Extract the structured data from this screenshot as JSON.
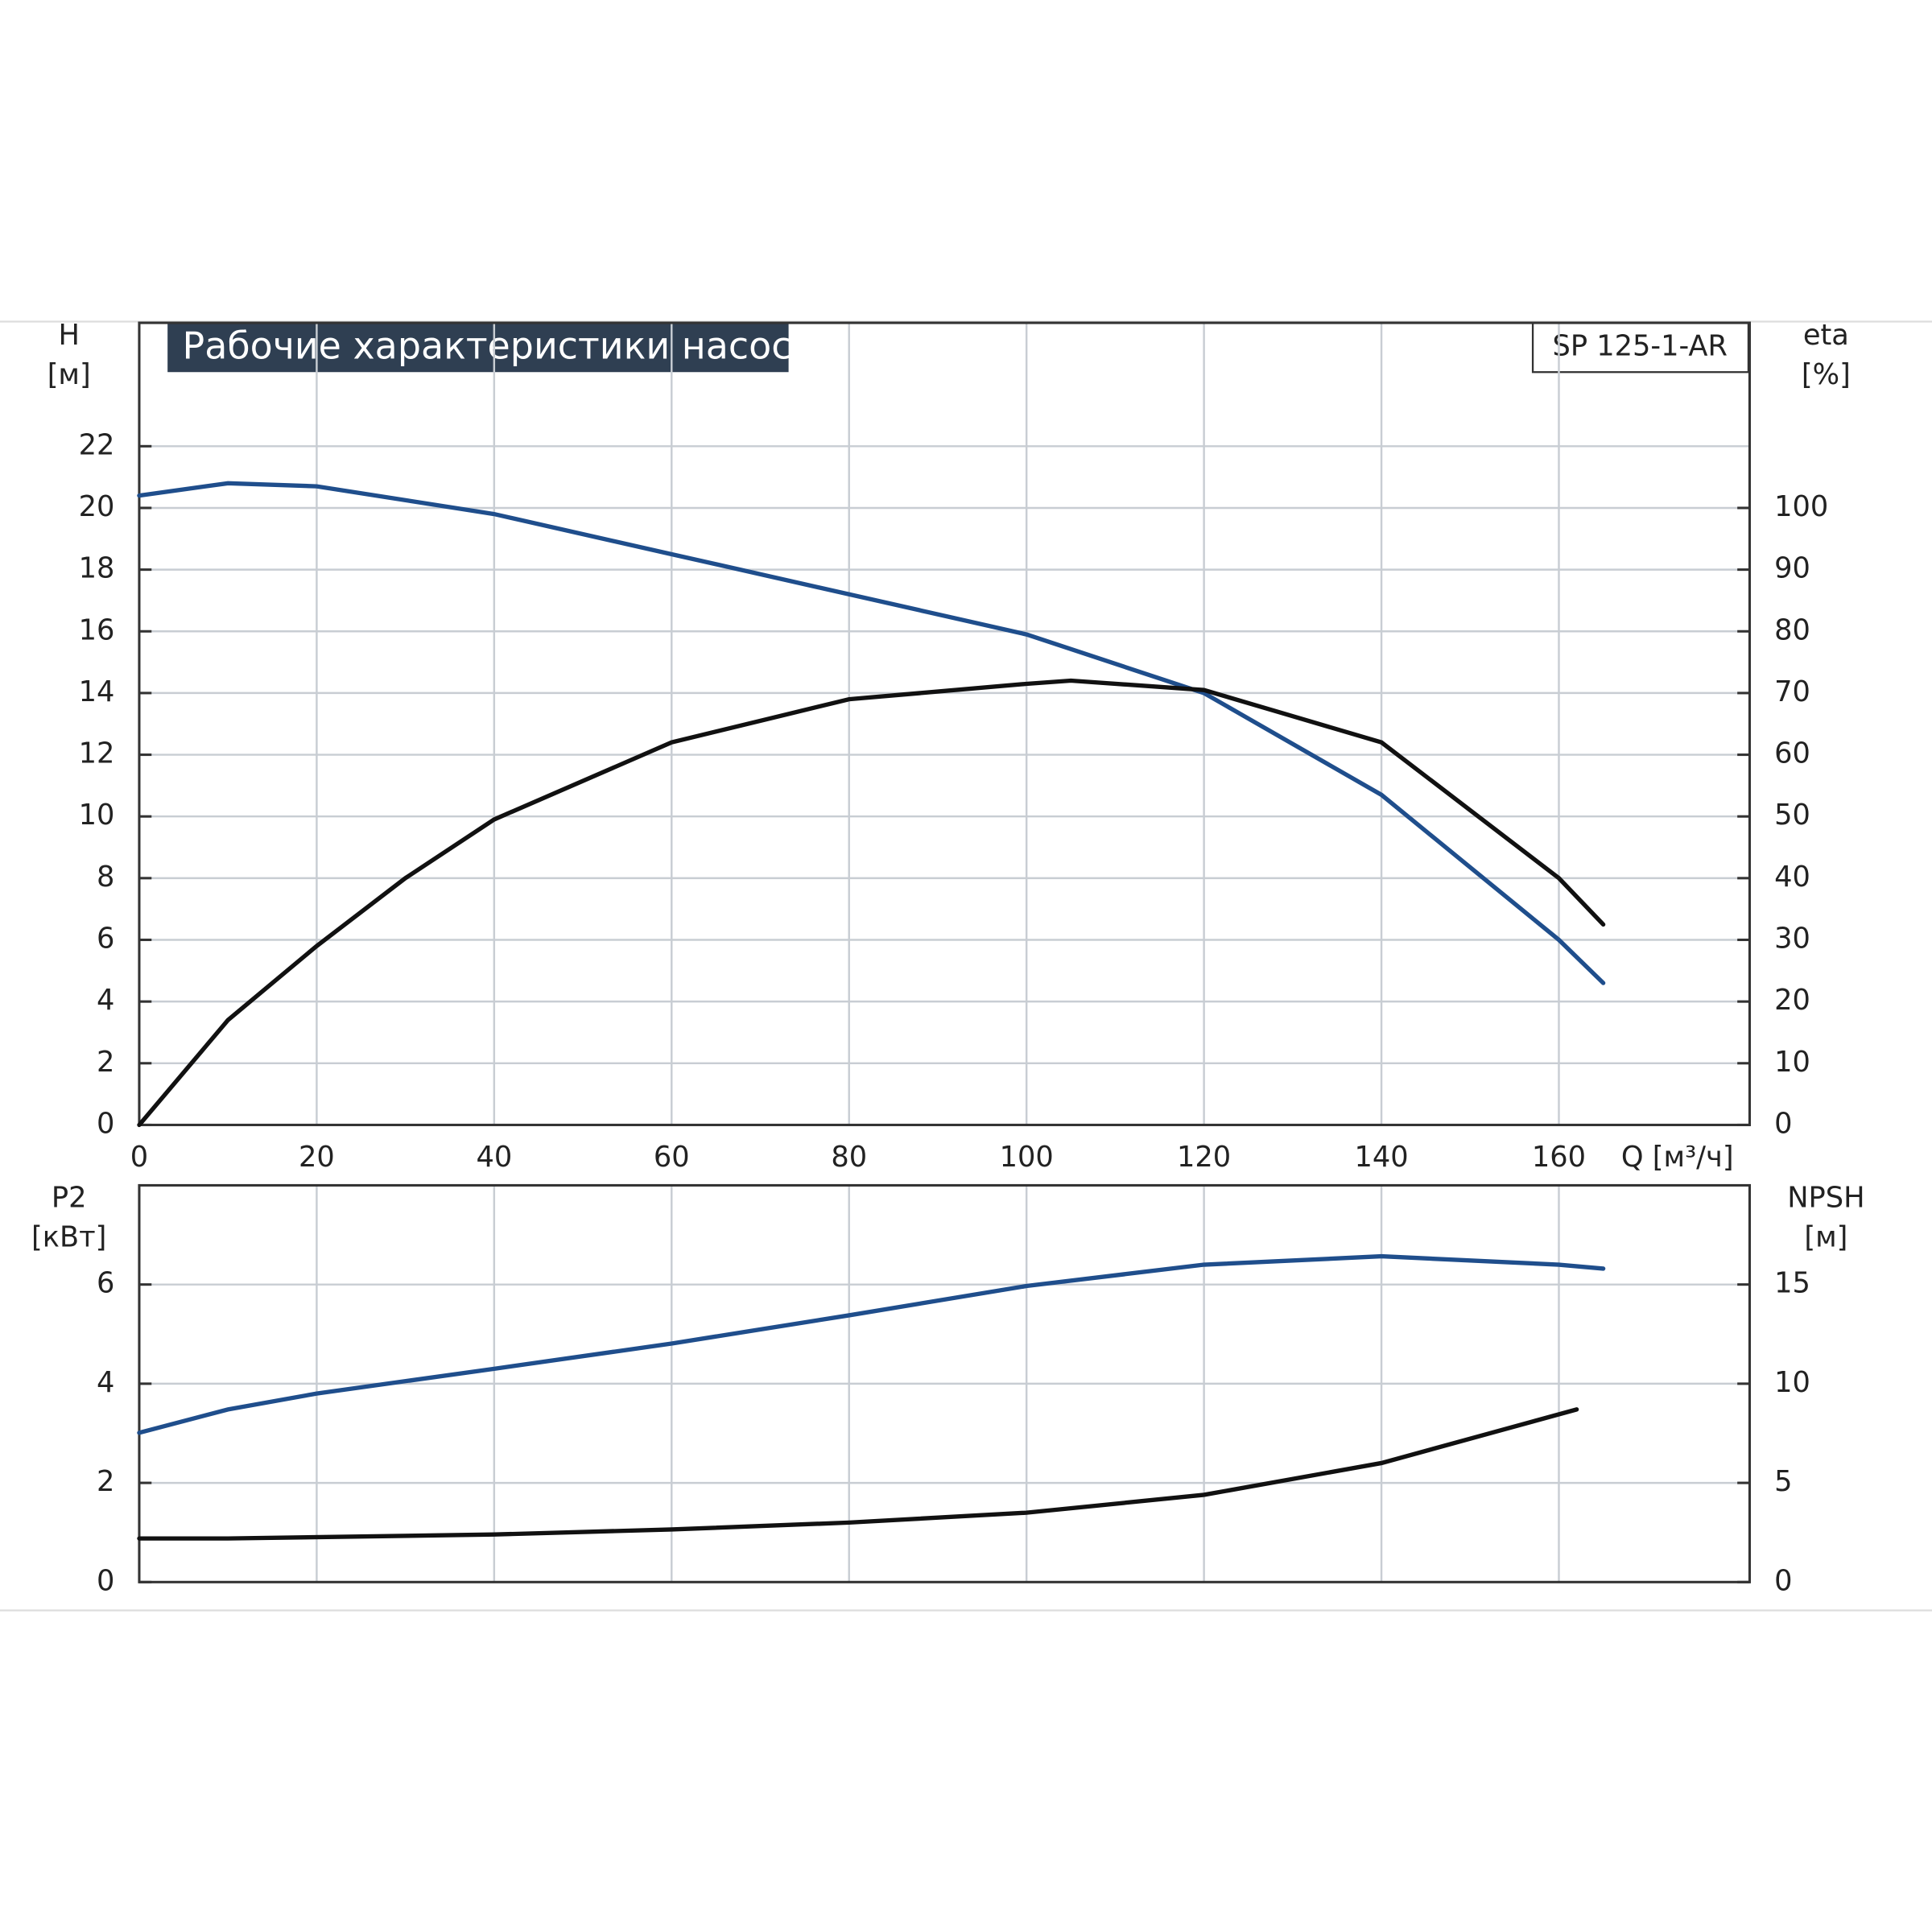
{
  "chart_data": [
    {
      "type": "line",
      "title": "Рабочие характеристики насоса",
      "model": "SP 125-1-AR",
      "xlabel": "Q [м³/ч]",
      "ylabel": "H",
      "yunit": "[м]",
      "y2label": "eta",
      "y2unit": "[%]",
      "xlim": [
        0,
        181.5
      ],
      "xticks": [
        0,
        20,
        40,
        60,
        80,
        100,
        120,
        140,
        160
      ],
      "ylim": [
        0,
        26
      ],
      "yticks": [
        0,
        2,
        4,
        6,
        8,
        10,
        12,
        14,
        16,
        18,
        20,
        22
      ],
      "y2lim": [
        0,
        130
      ],
      "y2ticks": [
        0,
        10,
        20,
        30,
        40,
        50,
        60,
        70,
        80,
        90,
        100
      ],
      "grid": true,
      "series": [
        {
          "color": "#1f4e8c",
          "x": [
            0,
            10,
            20,
            40,
            60,
            80,
            100,
            120,
            140,
            160,
            165
          ],
          "values": [
            20.4,
            20.8,
            20.7,
            19.8,
            18.5,
            17.2,
            15.9,
            14.0,
            10.7,
            6.0,
            4.6
          ]
        },
        {
          "color": "#111111",
          "axis": "y2",
          "x": [
            0,
            10,
            20,
            30,
            40,
            60,
            80,
            100,
            105,
            120,
            140,
            160,
            165
          ],
          "values": [
            0,
            17,
            29,
            40,
            49.5,
            62,
            69,
            71.5,
            72,
            70.5,
            62,
            40,
            32.5
          ]
        }
      ]
    },
    {
      "type": "line",
      "ylabel": "P2",
      "yunit": "[кВт]",
      "y2label": "NPSH",
      "y2unit": "[м]",
      "xlim": [
        0,
        181.5
      ],
      "ylim": [
        0,
        8
      ],
      "yticks": [
        0,
        2,
        4,
        6
      ],
      "y2lim": [
        0,
        20
      ],
      "y2ticks": [
        0,
        5,
        10,
        15
      ],
      "grid": true,
      "series": [
        {
          "color": "#1f4e8c",
          "x": [
            0,
            10,
            20,
            40,
            60,
            80,
            100,
            120,
            140,
            160,
            165
          ],
          "values": [
            3.01,
            3.48,
            3.8,
            4.3,
            4.81,
            5.38,
            5.97,
            6.4,
            6.57,
            6.4,
            6.32
          ]
        },
        {
          "color": "#111111",
          "axis": "y2",
          "x": [
            0,
            10,
            40,
            60,
            80,
            100,
            120,
            140,
            162
          ],
          "values": [
            2.2,
            2.2,
            2.4,
            2.65,
            3.0,
            3.5,
            4.4,
            6.0,
            8.7
          ]
        }
      ]
    }
  ]
}
